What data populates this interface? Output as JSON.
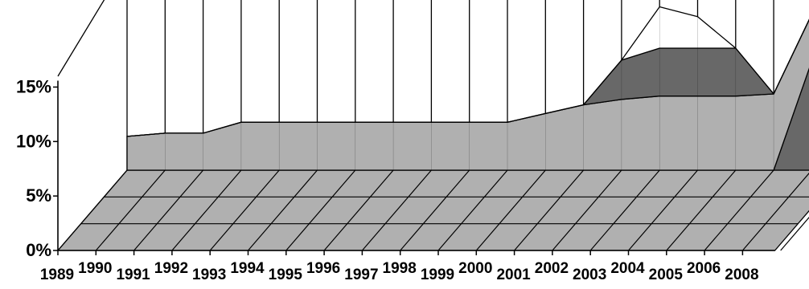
{
  "chart_data": {
    "type": "area",
    "style": "3d-stacked-area",
    "categories": [
      "1989",
      "1990",
      "1991",
      "1992",
      "1993",
      "1994",
      "1995",
      "1996",
      "1997",
      "1998",
      "1999",
      "2000",
      "2001",
      "2002",
      "2003",
      "2004",
      "2005",
      "2006",
      "2008"
    ],
    "y_tick_labels": [
      "0%",
      "5%",
      "10%",
      "15%"
    ],
    "ylim": [
      0,
      0.18
    ],
    "series": [
      {
        "values": [
          0,
          0,
          0,
          0,
          0,
          0,
          0,
          0,
          0,
          0,
          0,
          0,
          0,
          0,
          0,
          0,
          0,
          0,
          0.1
        ],
        "color": "#686868"
      },
      {
        "values": [
          0.031,
          0.034,
          0.034,
          0.044,
          0.044,
          0.044,
          0.044,
          0.044,
          0.044,
          0.044,
          0.044,
          0.052,
          0.06,
          0.065,
          0.068,
          0.068,
          0.068,
          0.07,
          0.043
        ],
        "color": "#b0b0b0"
      },
      {
        "values": [
          0,
          0,
          0,
          0,
          0,
          0,
          0,
          0,
          0,
          0,
          0,
          0,
          0,
          0.036,
          0.044,
          0.044,
          0.044,
          0,
          0
        ],
        "color": "#686868"
      },
      {
        "values": [
          0,
          0,
          0,
          0,
          0,
          0,
          0,
          0,
          0,
          0,
          0,
          0,
          0,
          0,
          0.038,
          0.029,
          0,
          0,
          0
        ],
        "color": "#ffffff"
      }
    ],
    "grid": true,
    "legend": "none",
    "title": "",
    "xlabel": "",
    "ylabel": ""
  }
}
